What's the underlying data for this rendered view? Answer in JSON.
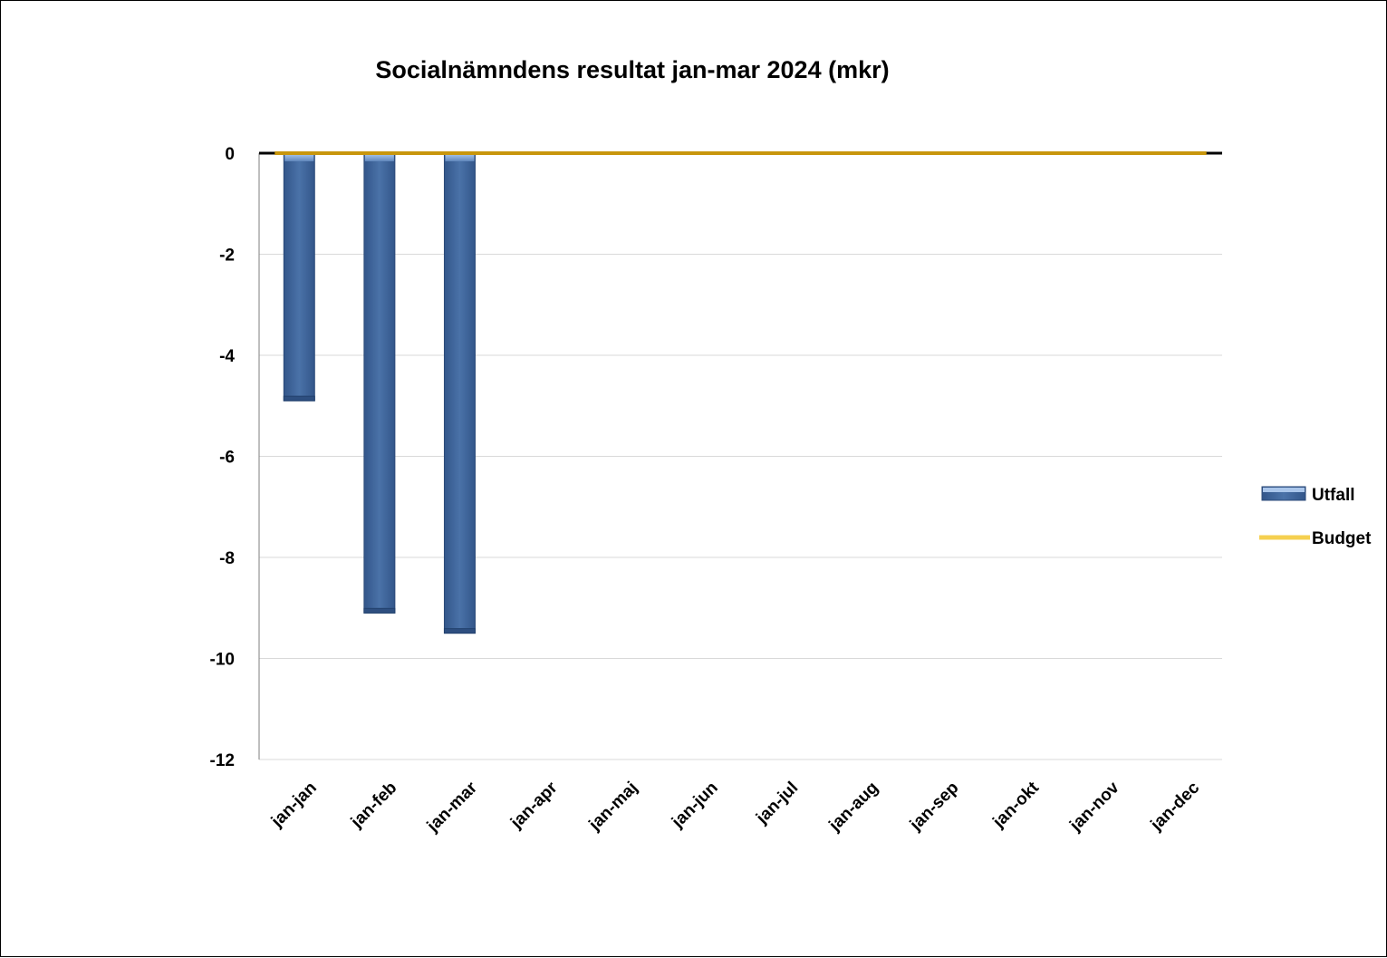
{
  "chart_data": {
    "type": "bar",
    "title": "Socialnämndens resultat jan-mar 2024 (mkr)",
    "xlabel": "",
    "ylabel": "",
    "ylim": [
      -12,
      0
    ],
    "yticks": [
      0,
      -2,
      -4,
      -6,
      -8,
      -10,
      -12
    ],
    "grid": true,
    "legend_position": "right",
    "categories": [
      "jan-jan",
      "jan-feb",
      "jan-mar",
      "jan-apr",
      "jan-maj",
      "jan-jun",
      "jan-jul",
      "jan-aug",
      "jan-sep",
      "jan-okt",
      "jan-nov",
      "jan-dec"
    ],
    "series": [
      {
        "name": "Utfall",
        "type": "bar",
        "color": "#3d6497",
        "values": [
          -4.9,
          -9.1,
          -9.5,
          null,
          null,
          null,
          null,
          null,
          null,
          null,
          null,
          null
        ]
      },
      {
        "name": "Budget",
        "type": "line",
        "color": "#c8960c",
        "values": [
          0,
          0,
          0,
          0,
          0,
          0,
          0,
          0,
          0,
          0,
          0,
          0
        ]
      }
    ],
    "legend_colors": {
      "Utfall": "#3d6497",
      "Budget": "#f5d050"
    }
  }
}
